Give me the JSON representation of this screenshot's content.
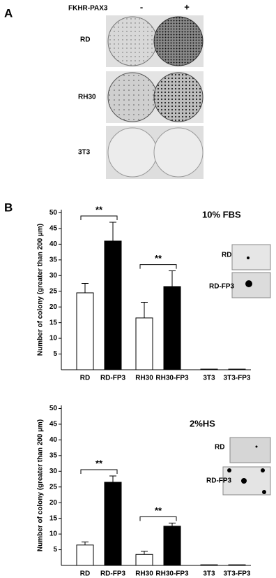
{
  "panel_a": {
    "label": "A",
    "header": "FKHR-PAX3",
    "columns": [
      "-",
      "+"
    ],
    "rows": [
      "RD",
      "RH30",
      "3T3"
    ]
  },
  "panel_b": {
    "label": "B"
  },
  "chart_data": [
    {
      "type": "bar",
      "title": "10% FBS",
      "y_label": "Number of colony (greater than 200 µm)",
      "categories": [
        "RD",
        "RD-FP3",
        "RH30",
        "RH30-FP3",
        "3T3",
        "3T3-FP3"
      ],
      "values": [
        24.5,
        41,
        16.5,
        26.5,
        0.2,
        0.2
      ],
      "errors": [
        3,
        6,
        5,
        5,
        0,
        0
      ],
      "colors": [
        "#ffffff",
        "#000000",
        "#ffffff",
        "#000000",
        "#ffffff",
        "#000000"
      ],
      "ylim": [
        0,
        51
      ],
      "yticks": [
        5,
        10,
        15,
        20,
        25,
        30,
        35,
        40,
        45,
        50
      ],
      "annotations": [
        "**",
        "**"
      ],
      "inset_labels": [
        "RD",
        "RD-FP3"
      ]
    },
    {
      "type": "bar",
      "title": "2%HS",
      "y_label": "Number of colony (greater than 200 µm)",
      "categories": [
        "RD",
        "RD-FP3",
        "RH30",
        "RH30-FP3",
        "3T3",
        "3T3-FP3"
      ],
      "values": [
        6.5,
        26.5,
        3.5,
        12.5,
        0.2,
        0.2
      ],
      "errors": [
        1,
        2,
        1,
        1,
        0,
        0
      ],
      "colors": [
        "#ffffff",
        "#000000",
        "#ffffff",
        "#000000",
        "#ffffff",
        "#000000"
      ],
      "ylim": [
        0,
        51
      ],
      "yticks": [
        5,
        10,
        15,
        20,
        25,
        30,
        35,
        40,
        45,
        50
      ],
      "annotations": [
        "**",
        "**"
      ],
      "inset_labels": [
        "RD",
        "RD-FP3"
      ]
    }
  ]
}
